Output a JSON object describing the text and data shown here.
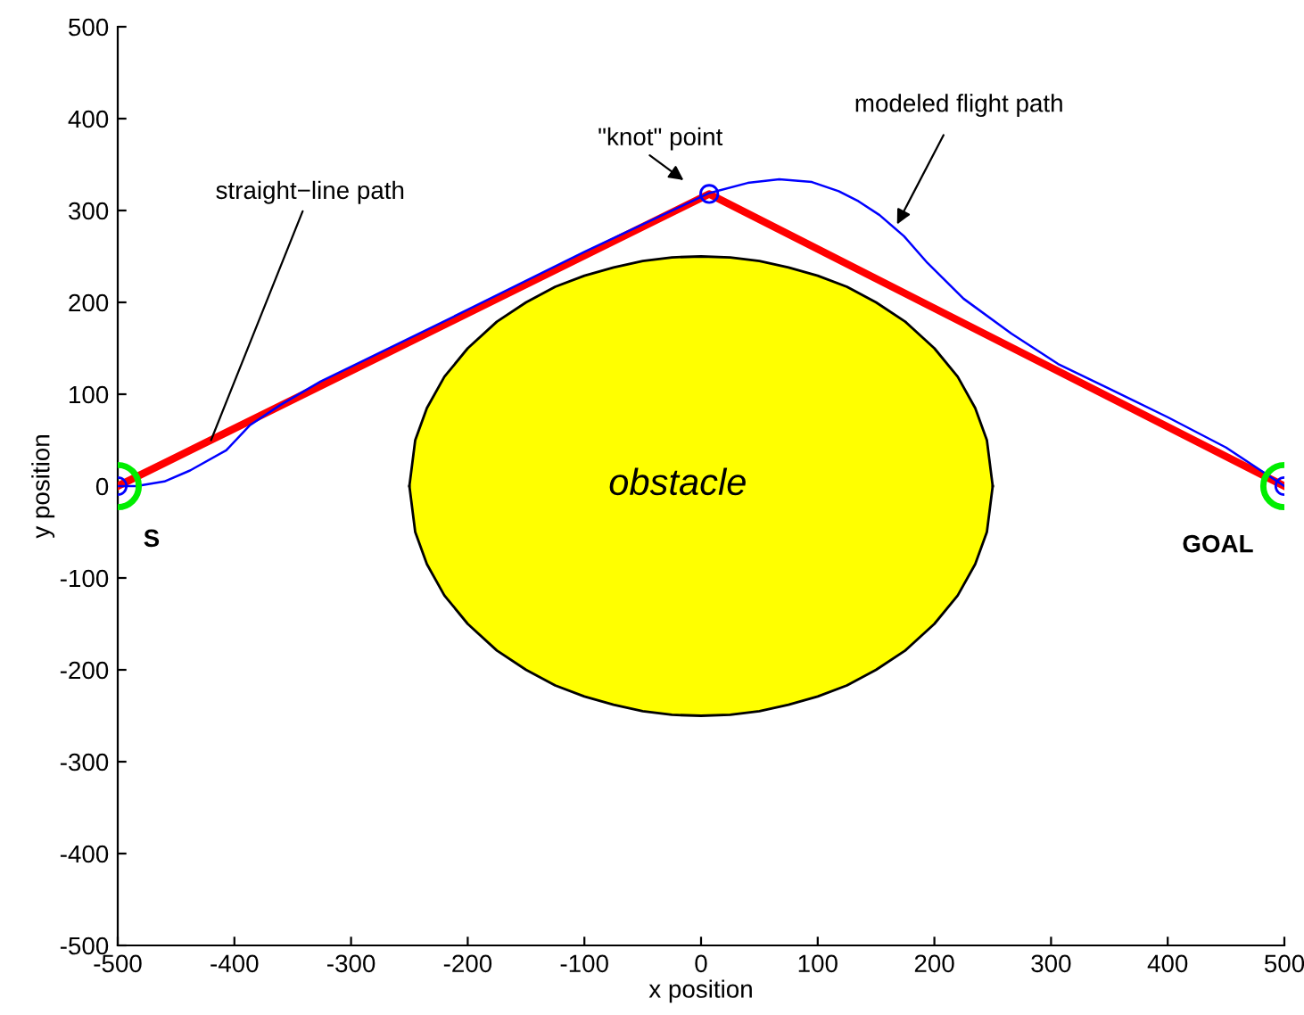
{
  "chart_data": {
    "type": "line",
    "xlabel": "x position",
    "ylabel": "y position",
    "xlim": [
      -500,
      500
    ],
    "ylim": [
      -500,
      500
    ],
    "xticks": [
      -500,
      -400,
      -300,
      -200,
      -100,
      0,
      100,
      200,
      300,
      400,
      500
    ],
    "yticks": [
      -500,
      -400,
      -300,
      -200,
      -100,
      0,
      100,
      200,
      300,
      400,
      500
    ],
    "grid": false,
    "series": [
      {
        "type": "area",
        "color": "#ffff00",
        "x": [
          -250,
          -245,
          -235,
          -220,
          -200,
          -175,
          -150,
          -125,
          -100,
          -75,
          -50,
          -25,
          0,
          25,
          50,
          75,
          100,
          125,
          150,
          175,
          200,
          220,
          235,
          245,
          250
        ],
        "values": [
          0,
          50,
          85,
          119,
          150,
          179,
          200,
          217,
          229,
          238,
          245,
          249,
          250,
          249,
          245,
          238,
          229,
          217,
          200,
          179,
          150,
          119,
          85,
          50,
          0
        ]
      },
      {
        "type": "area",
        "color": "#ffff00",
        "x": [
          -250,
          -245,
          -235,
          -220,
          -200,
          -175,
          -150,
          -125,
          -100,
          -75,
          -50,
          -25,
          0,
          25,
          50,
          75,
          100,
          125,
          150,
          175,
          200,
          220,
          235,
          245,
          250
        ],
        "values": [
          0,
          -50,
          -85,
          -119,
          -150,
          -179,
          -200,
          -217,
          -229,
          -238,
          -245,
          -249,
          -250,
          -249,
          -245,
          -238,
          -229,
          -217,
          -200,
          -179,
          -150,
          -119,
          -85,
          -50,
          0
        ]
      },
      {
        "color": "#ff0000",
        "x": [
          -500,
          7,
          500
        ],
        "values": [
          0,
          318,
          0
        ]
      },
      {
        "color": "#0000ff",
        "x": [
          -500,
          -484,
          -460,
          -438,
          -407,
          -387,
          -361,
          -326,
          -300,
          -200,
          -100,
          7,
          40,
          67,
          95,
          118,
          135,
          153,
          174,
          194,
          225,
          266,
          306,
          350,
          400,
          450,
          500
        ],
        "values": [
          0,
          0,
          5,
          17,
          39,
          66,
          88,
          114,
          130,
          192,
          255,
          319,
          330,
          334,
          331,
          321,
          310,
          295,
          272,
          243,
          204,
          166,
          133,
          106,
          75,
          42,
          0
        ]
      },
      {
        "type": "scatter",
        "color": "#0000ff",
        "marker": "circle",
        "x": [
          -500,
          7,
          500
        ],
        "values": [
          0,
          318,
          0
        ]
      },
      {
        "type": "scatter",
        "color": "#00ee00",
        "marker": "circle",
        "x": [
          -500,
          500
        ],
        "values": [
          0,
          0
        ]
      }
    ],
    "annotations": [
      {
        "text": "straight−line path",
        "x": -420,
        "y": 50
      },
      "\"knot\" point",
      {
        "text": "modeled flight path",
        "x": 168,
        "y": 285
      },
      "S",
      "GOAL",
      "obstacle"
    ]
  }
}
